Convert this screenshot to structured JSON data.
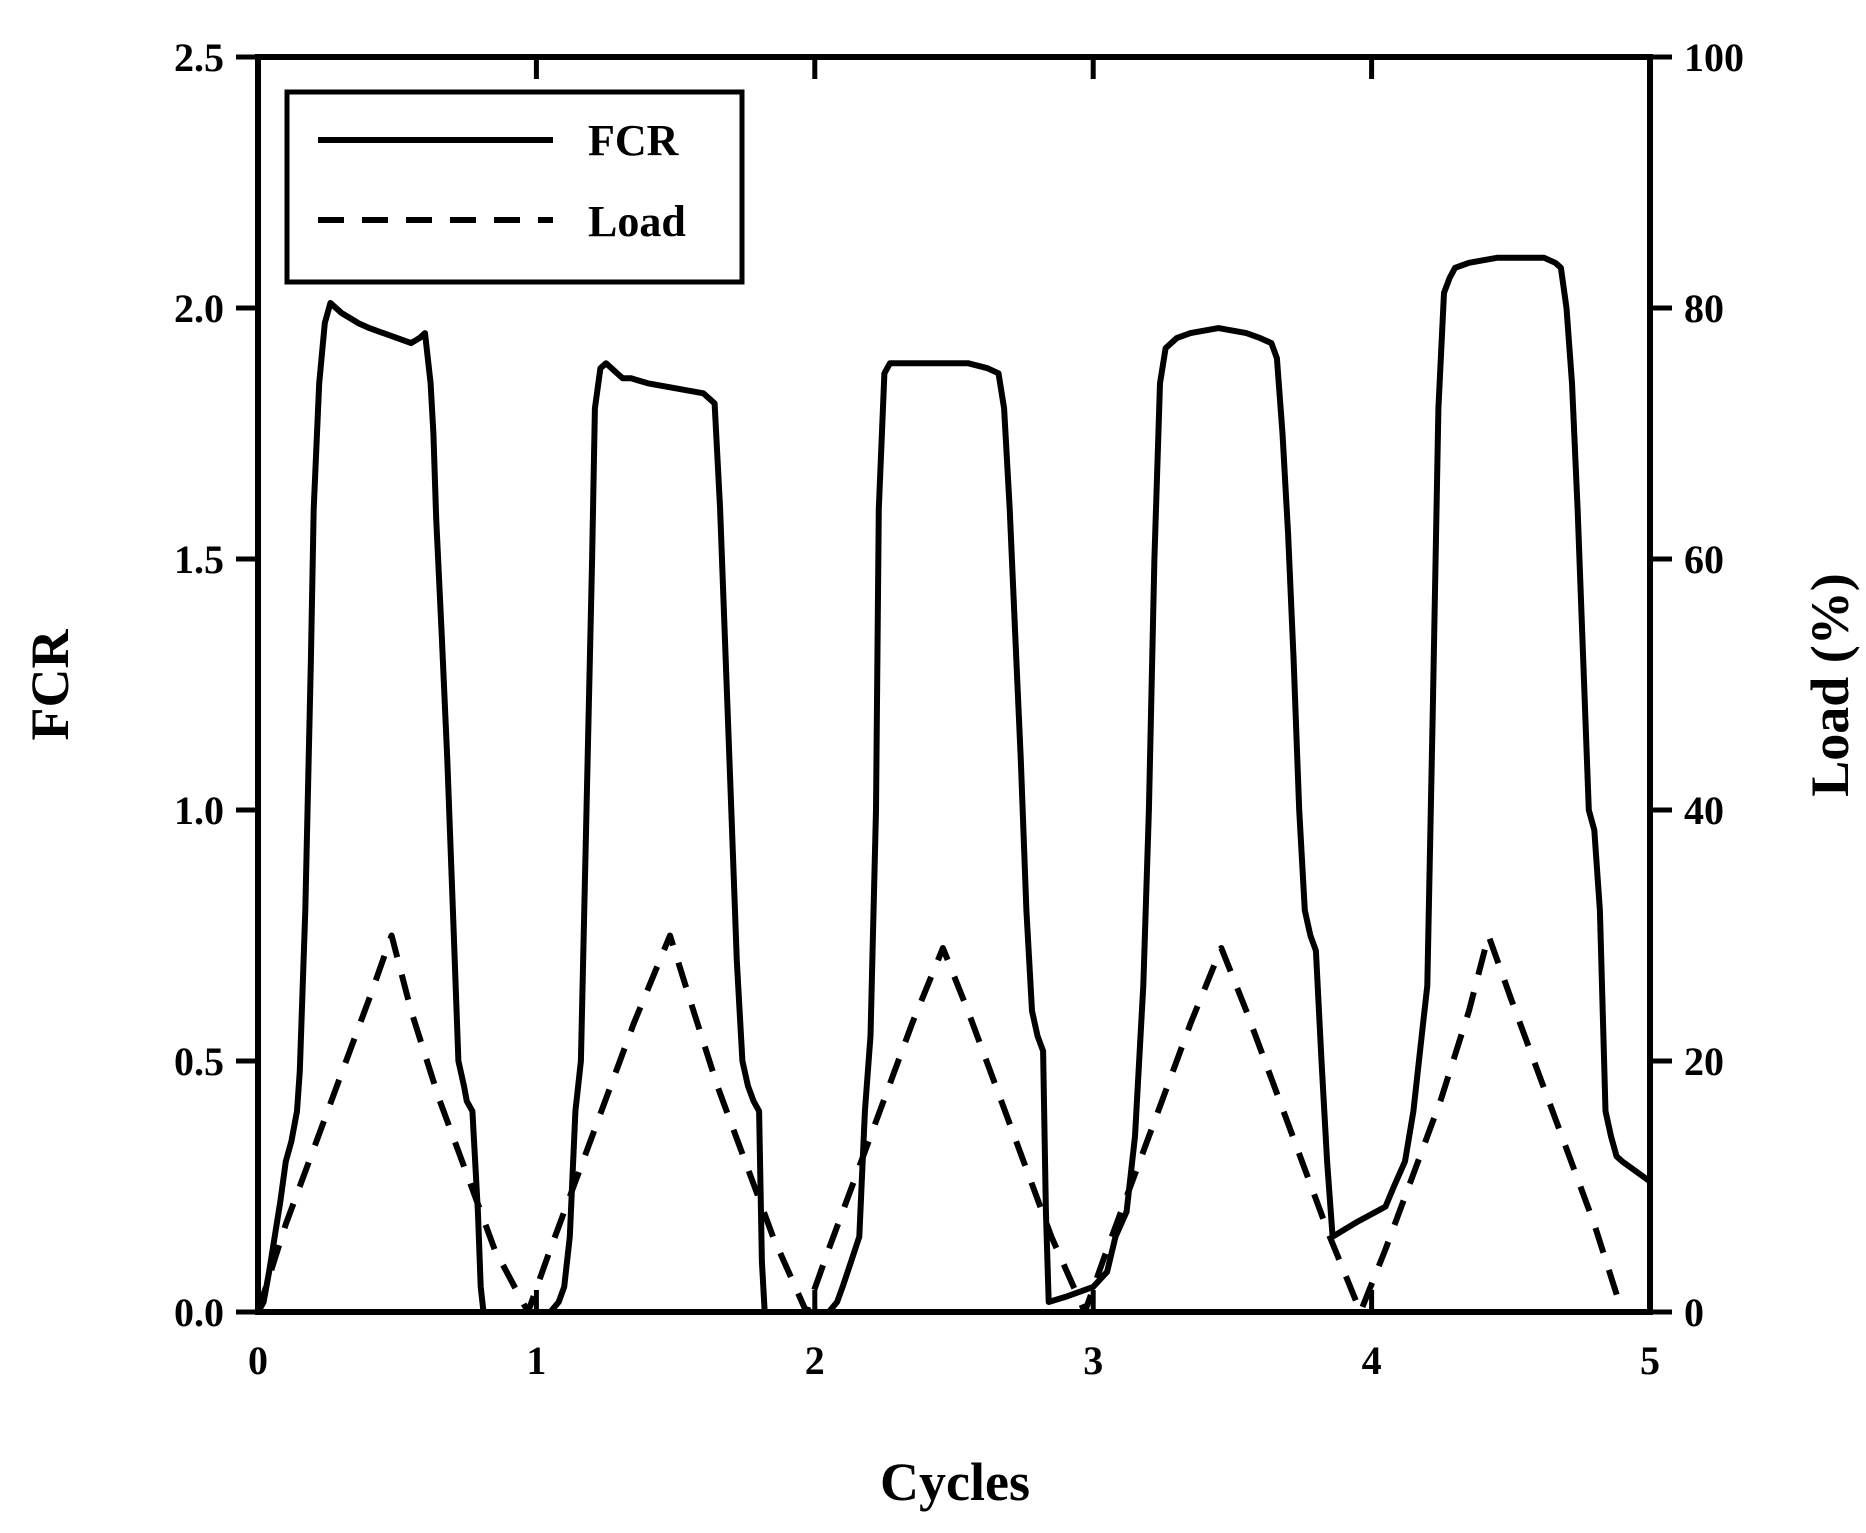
{
  "chart_data": {
    "type": "line",
    "xlabel": "Cycles",
    "ylabel": "FCR",
    "y2label": "Load (%)",
    "xlim": [
      0,
      5
    ],
    "ylim": [
      0,
      2.5
    ],
    "y2lim": [
      0,
      100
    ],
    "xticks": [
      "0",
      "1",
      "2",
      "3",
      "4",
      "5"
    ],
    "yticks": [
      "0.0",
      "0.5",
      "1.0",
      "1.5",
      "2.0",
      "2.5"
    ],
    "y2ticks": [
      "0",
      "20",
      "40",
      "60",
      "80",
      "100"
    ],
    "grid": false,
    "legend_position": "top-left",
    "series": [
      {
        "name": "FCR",
        "axis": "left",
        "style": "solid",
        "color": "#000000",
        "x": [
          0.0,
          0.02,
          0.04,
          0.06,
          0.08,
          0.1,
          0.12,
          0.14,
          0.15,
          0.17,
          0.19,
          0.2,
          0.22,
          0.24,
          0.26,
          0.28,
          0.3,
          0.33,
          0.36,
          0.4,
          0.45,
          0.5,
          0.55,
          0.58,
          0.6,
          0.61,
          0.62,
          0.63,
          0.64,
          0.66,
          0.68,
          0.7,
          0.72,
          0.74,
          0.75,
          0.77,
          0.79,
          0.8,
          0.81,
          1.05,
          1.08,
          1.1,
          1.12,
          1.14,
          1.16,
          1.18,
          1.2,
          1.21,
          1.23,
          1.25,
          1.27,
          1.29,
          1.31,
          1.34,
          1.4,
          1.5,
          1.6,
          1.64,
          1.66,
          1.68,
          1.7,
          1.72,
          1.74,
          1.76,
          1.78,
          1.8,
          1.81,
          1.82,
          2.05,
          2.08,
          2.1,
          2.13,
          2.16,
          2.18,
          2.2,
          2.22,
          2.23,
          2.25,
          2.27,
          2.29,
          2.31,
          2.35,
          2.45,
          2.55,
          2.62,
          2.66,
          2.68,
          2.7,
          2.72,
          2.74,
          2.76,
          2.78,
          2.8,
          2.82,
          2.83,
          2.84,
          2.9,
          3.0,
          3.05,
          3.08,
          3.12,
          3.15,
          3.18,
          3.2,
          3.22,
          3.24,
          3.26,
          3.28,
          3.3,
          3.35,
          3.45,
          3.55,
          3.6,
          3.64,
          3.66,
          3.68,
          3.7,
          3.72,
          3.74,
          3.76,
          3.78,
          3.8,
          3.82,
          3.84,
          3.86,
          3.95,
          4.05,
          4.08,
          4.12,
          4.15,
          4.18,
          4.2,
          4.22,
          4.24,
          4.26,
          4.28,
          4.3,
          4.35,
          4.45,
          4.55,
          4.62,
          4.66,
          4.68,
          4.7,
          4.72,
          4.74,
          4.76,
          4.78,
          4.8,
          4.82,
          4.84,
          4.86,
          4.88,
          4.9,
          4.95,
          5.0
        ],
        "y": [
          0.0,
          0.02,
          0.08,
          0.15,
          0.22,
          0.3,
          0.34,
          0.4,
          0.48,
          0.8,
          1.3,
          1.6,
          1.85,
          1.97,
          2.01,
          2.0,
          1.99,
          1.98,
          1.97,
          1.96,
          1.95,
          1.94,
          1.93,
          1.94,
          1.95,
          1.9,
          1.85,
          1.75,
          1.58,
          1.35,
          1.1,
          0.8,
          0.5,
          0.45,
          0.42,
          0.4,
          0.2,
          0.05,
          0.0,
          0.0,
          0.02,
          0.05,
          0.15,
          0.4,
          0.5,
          1.0,
          1.5,
          1.8,
          1.88,
          1.89,
          1.88,
          1.87,
          1.86,
          1.86,
          1.85,
          1.84,
          1.83,
          1.81,
          1.6,
          1.3,
          1.0,
          0.7,
          0.5,
          0.45,
          0.42,
          0.4,
          0.1,
          0.0,
          0.0,
          0.02,
          0.05,
          0.1,
          0.15,
          0.4,
          0.55,
          1.0,
          1.6,
          1.87,
          1.89,
          1.89,
          1.89,
          1.89,
          1.89,
          1.89,
          1.88,
          1.87,
          1.8,
          1.6,
          1.35,
          1.1,
          0.8,
          0.6,
          0.55,
          0.52,
          0.2,
          0.02,
          0.03,
          0.05,
          0.08,
          0.15,
          0.2,
          0.35,
          0.65,
          1.0,
          1.5,
          1.85,
          1.92,
          1.93,
          1.94,
          1.95,
          1.96,
          1.95,
          1.94,
          1.93,
          1.9,
          1.75,
          1.55,
          1.3,
          1.0,
          0.8,
          0.75,
          0.72,
          0.5,
          0.3,
          0.15,
          0.18,
          0.21,
          0.25,
          0.3,
          0.4,
          0.55,
          0.65,
          1.2,
          1.8,
          2.03,
          2.06,
          2.08,
          2.09,
          2.1,
          2.1,
          2.1,
          2.09,
          2.08,
          2.0,
          1.85,
          1.6,
          1.3,
          1.0,
          0.96,
          0.8,
          0.4,
          0.35,
          0.31,
          0.3,
          0.28,
          0.26
        ]
      },
      {
        "name": "Load",
        "axis": "right",
        "style": "dashed",
        "color": "#000000",
        "x": [
          0.0,
          0.1,
          0.2,
          0.3,
          0.4,
          0.48,
          0.55,
          0.65,
          0.75,
          0.85,
          0.97,
          1.05,
          1.15,
          1.25,
          1.35,
          1.48,
          1.55,
          1.65,
          1.75,
          1.85,
          1.97,
          2.05,
          2.15,
          2.25,
          2.35,
          2.46,
          2.55,
          2.65,
          2.75,
          2.85,
          2.97,
          3.05,
          3.15,
          3.25,
          3.35,
          3.46,
          3.55,
          3.65,
          3.75,
          3.85,
          3.96,
          4.05,
          4.15,
          4.25,
          4.35,
          4.42,
          4.5,
          4.6,
          4.7,
          4.8,
          4.9
        ],
        "y": [
          0.0,
          7.0,
          13.0,
          19.0,
          25.0,
          30.0,
          24.0,
          17.0,
          11.0,
          5.0,
          0.0,
          5.0,
          11.0,
          17.0,
          23.0,
          30.0,
          25.0,
          18.0,
          12.0,
          6.0,
          0.0,
          5.0,
          11.0,
          17.0,
          23.0,
          29.0,
          24.0,
          18.0,
          12.0,
          6.0,
          0.0,
          5.0,
          11.0,
          17.0,
          23.0,
          29.0,
          24.0,
          18.0,
          12.0,
          6.0,
          0.0,
          5.0,
          11.0,
          17.0,
          24.0,
          30.0,
          25.0,
          19.0,
          13.0,
          7.0,
          0.0
        ]
      }
    ]
  }
}
